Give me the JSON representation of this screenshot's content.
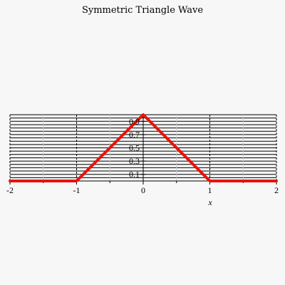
{
  "chart_data": {
    "type": "line",
    "title": "Symmetric Triangle Wave",
    "xlabel": "x",
    "ylabel": "",
    "xlim": [
      -2,
      2
    ],
    "ylim": [
      0,
      1
    ],
    "x_ticks": [
      -2,
      -1,
      0,
      1,
      2
    ],
    "x_tick_labels": [
      "-2",
      "-1",
      "0",
      "1",
      "2"
    ],
    "y_ticks": [
      0.1,
      0.3,
      0.5,
      0.7,
      0.9
    ],
    "y_tick_labels": [
      "0.1",
      "0.3",
      "0.5",
      "0.7",
      "0.9"
    ],
    "grid": true,
    "series": [
      {
        "color": "#e8130a",
        "x": [
          -2,
          -1,
          0,
          1,
          2
        ],
        "y": [
          0,
          0,
          1,
          0,
          0
        ]
      }
    ]
  }
}
